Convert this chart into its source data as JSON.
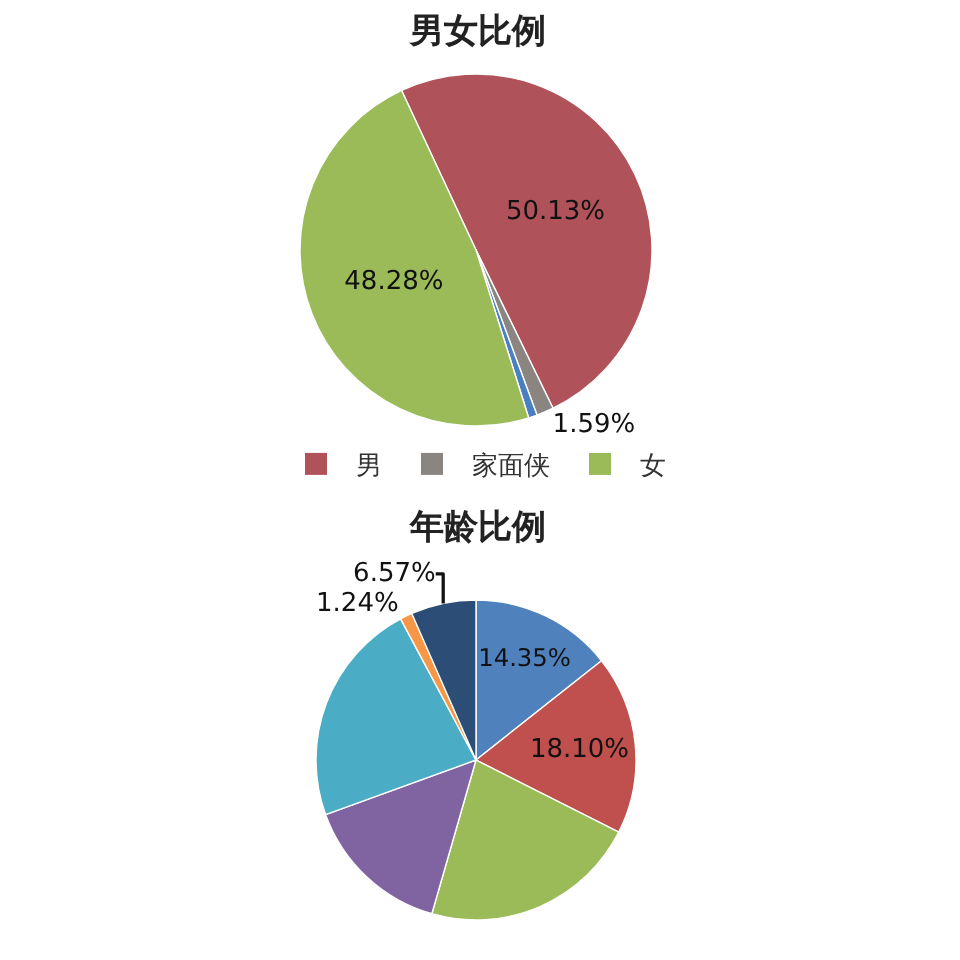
{
  "chart_data": [
    {
      "type": "pie",
      "title": "男女比例",
      "categories": [
        "男",
        "家面侠",
        null,
        "女"
      ],
      "values": [
        50.13,
        1.59,
        0.8,
        48.28
      ],
      "colors": [
        "#b0525a",
        "#8a8580",
        "#4a7fc1",
        "#9bbb59"
      ],
      "value_labels": [
        "50.13%",
        "1.59%",
        null,
        "48.28%"
      ],
      "legend": "bottom"
    },
    {
      "type": "pie",
      "title": "年龄比例",
      "categories": [
        null,
        null,
        null,
        null,
        null,
        null,
        null
      ],
      "values": [
        14.35,
        18.1,
        22,
        15,
        22.74,
        1.24,
        6.57
      ],
      "colors": [
        "#4f81bd",
        "#c0504d",
        "#9bbb59",
        "#8064a2",
        "#4bacc6",
        "#f79646",
        "#2c4d75"
      ],
      "value_labels": [
        "14.35%",
        "18.10%",
        null,
        null,
        null,
        "1.24%",
        "6.57%"
      ]
    }
  ]
}
